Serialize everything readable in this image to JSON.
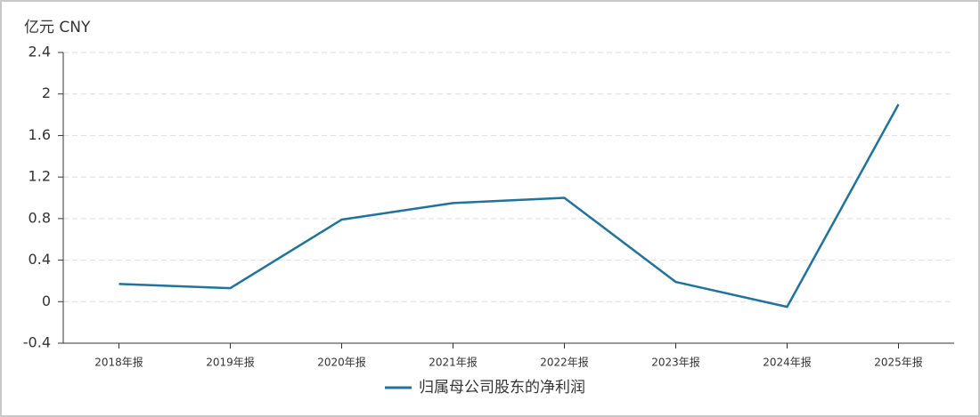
{
  "chart_data": {
    "type": "line",
    "y_unit": "亿元  CNY",
    "categories": [
      "2018年报",
      "2019年报",
      "2020年报",
      "2021年报",
      "2022年报",
      "2023年报",
      "2024年报",
      "2025年报"
    ],
    "series": [
      {
        "name": "归属母公司股东的净利润",
        "color": "#21739b",
        "values": [
          0.17,
          0.13,
          0.79,
          0.95,
          1.0,
          0.19,
          -0.05,
          1.9
        ]
      }
    ],
    "ylim": [
      -0.4,
      2.4
    ],
    "yticks": [
      -0.4,
      0,
      0.4,
      0.8,
      1.2,
      1.6,
      2,
      2.4
    ],
    "grid": true,
    "legend": "bottom"
  }
}
